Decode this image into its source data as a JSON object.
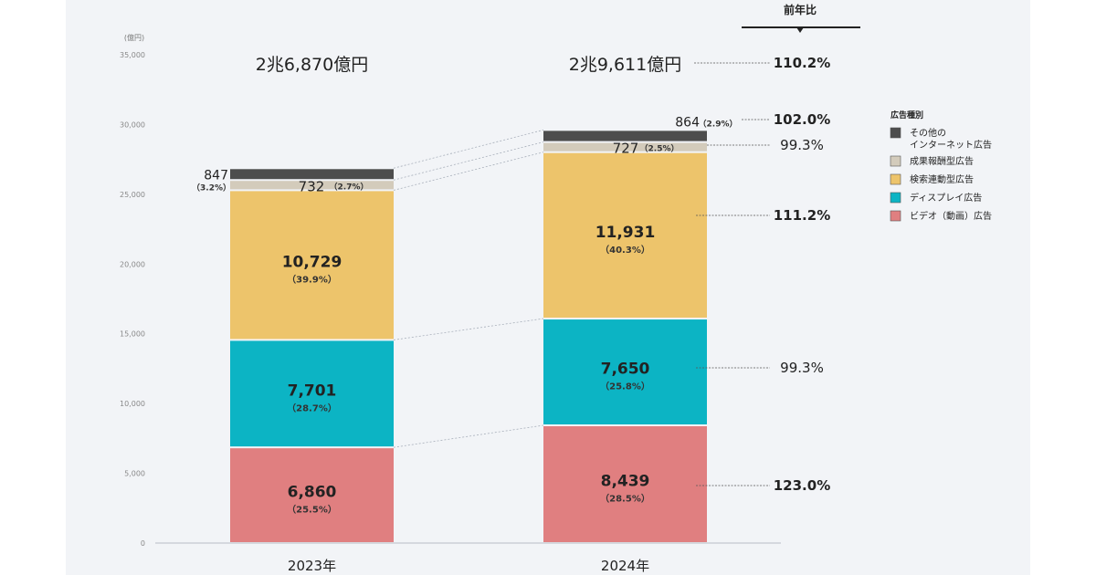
{
  "chart_data": {
    "type": "bar",
    "stacked": true,
    "unit_label": "(億円)",
    "ylim": [
      0,
      35000
    ],
    "yticks": [
      "0",
      "5,000",
      "10,000",
      "15,000",
      "20,000",
      "25,000",
      "30,000",
      "35,000"
    ],
    "ytick_values": [
      0,
      5000,
      10000,
      15000,
      20000,
      25000,
      30000,
      35000
    ],
    "categories": [
      "2023年",
      "2024年"
    ],
    "totals": [
      {
        "label": "2兆6,870億円",
        "value": 26870
      },
      {
        "label": "2兆9,611億円",
        "value": 29611
      }
    ],
    "series": [
      {
        "name": "ビデオ（動画）広告",
        "color": "#e07f80",
        "values": [
          6860,
          8439
        ],
        "value_labels": [
          "6,860",
          "8,439"
        ],
        "shares": [
          "（25.5%）",
          "（28.5%）"
        ],
        "yoy": "123.0%"
      },
      {
        "name": "ディスプレイ広告",
        "color": "#0cb4c4",
        "values": [
          7701,
          7650
        ],
        "value_labels": [
          "7,701",
          "7,650"
        ],
        "shares": [
          "（28.7%）",
          "（25.8%）"
        ],
        "yoy": "99.3%"
      },
      {
        "name": "検索連動型広告",
        "color": "#edc46b",
        "values": [
          10729,
          11931
        ],
        "value_labels": [
          "10,729",
          "11,931"
        ],
        "shares": [
          "（39.9%）",
          "（40.3%）"
        ],
        "yoy": "111.2%"
      },
      {
        "name": "成果報酬型広告",
        "color": "#d3cbbb",
        "values": [
          732,
          727
        ],
        "value_labels": [
          "732",
          "727"
        ],
        "shares": [
          "（2.7%）",
          "（2.5%）"
        ],
        "yoy": "99.3%"
      },
      {
        "name": "その他の\nインターネット広告",
        "color": "#4d4d4d",
        "values": [
          847,
          864
        ],
        "value_labels": [
          "847",
          "864"
        ],
        "shares": [
          "（3.2%）",
          "（2.9%）"
        ],
        "yoy": "102.0%"
      }
    ],
    "yoy_header": "前年比",
    "total_yoy": "110.2%",
    "legend_title": "広告種別",
    "legend_position": "right"
  }
}
